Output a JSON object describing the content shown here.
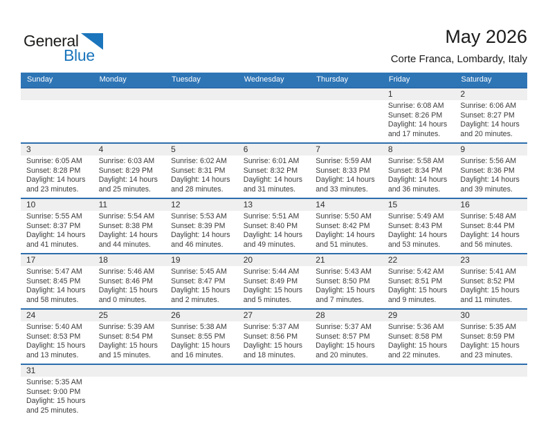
{
  "logo": {
    "line1": "General",
    "line2": "Blue"
  },
  "header": {
    "title": "May 2026",
    "subtitle": "Corte Franca, Lombardy, Italy"
  },
  "weekday_header": [
    "Sunday",
    "Monday",
    "Tuesday",
    "Wednesday",
    "Thursday",
    "Friday",
    "Saturday"
  ],
  "colors": {
    "header-bg": "#2e75b6",
    "line-blue": "#2b6cac",
    "band-bg": "#efefef",
    "brand-blue": "#1b75bc"
  },
  "weeks": [
    [
      null,
      null,
      null,
      null,
      null,
      {
        "day": "1",
        "lines": [
          "Sunrise: 6:08 AM",
          "Sunset: 8:26 PM",
          "Daylight: 14 hours and 17 minutes."
        ]
      },
      {
        "day": "2",
        "lines": [
          "Sunrise: 6:06 AM",
          "Sunset: 8:27 PM",
          "Daylight: 14 hours and 20 minutes."
        ]
      }
    ],
    [
      {
        "day": "3",
        "lines": [
          "Sunrise: 6:05 AM",
          "Sunset: 8:28 PM",
          "Daylight: 14 hours and 23 minutes."
        ]
      },
      {
        "day": "4",
        "lines": [
          "Sunrise: 6:03 AM",
          "Sunset: 8:29 PM",
          "Daylight: 14 hours and 25 minutes."
        ]
      },
      {
        "day": "5",
        "lines": [
          "Sunrise: 6:02 AM",
          "Sunset: 8:31 PM",
          "Daylight: 14 hours and 28 minutes."
        ]
      },
      {
        "day": "6",
        "lines": [
          "Sunrise: 6:01 AM",
          "Sunset: 8:32 PM",
          "Daylight: 14 hours and 31 minutes."
        ]
      },
      {
        "day": "7",
        "lines": [
          "Sunrise: 5:59 AM",
          "Sunset: 8:33 PM",
          "Daylight: 14 hours and 33 minutes."
        ]
      },
      {
        "day": "8",
        "lines": [
          "Sunrise: 5:58 AM",
          "Sunset: 8:34 PM",
          "Daylight: 14 hours and 36 minutes."
        ]
      },
      {
        "day": "9",
        "lines": [
          "Sunrise: 5:56 AM",
          "Sunset: 8:36 PM",
          "Daylight: 14 hours and 39 minutes."
        ]
      }
    ],
    [
      {
        "day": "10",
        "lines": [
          "Sunrise: 5:55 AM",
          "Sunset: 8:37 PM",
          "Daylight: 14 hours and 41 minutes."
        ]
      },
      {
        "day": "11",
        "lines": [
          "Sunrise: 5:54 AM",
          "Sunset: 8:38 PM",
          "Daylight: 14 hours and 44 minutes."
        ]
      },
      {
        "day": "12",
        "lines": [
          "Sunrise: 5:53 AM",
          "Sunset: 8:39 PM",
          "Daylight: 14 hours and 46 minutes."
        ]
      },
      {
        "day": "13",
        "lines": [
          "Sunrise: 5:51 AM",
          "Sunset: 8:40 PM",
          "Daylight: 14 hours and 49 minutes."
        ]
      },
      {
        "day": "14",
        "lines": [
          "Sunrise: 5:50 AM",
          "Sunset: 8:42 PM",
          "Daylight: 14 hours and 51 minutes."
        ]
      },
      {
        "day": "15",
        "lines": [
          "Sunrise: 5:49 AM",
          "Sunset: 8:43 PM",
          "Daylight: 14 hours and 53 minutes."
        ]
      },
      {
        "day": "16",
        "lines": [
          "Sunrise: 5:48 AM",
          "Sunset: 8:44 PM",
          "Daylight: 14 hours and 56 minutes."
        ]
      }
    ],
    [
      {
        "day": "17",
        "lines": [
          "Sunrise: 5:47 AM",
          "Sunset: 8:45 PM",
          "Daylight: 14 hours and 58 minutes."
        ]
      },
      {
        "day": "18",
        "lines": [
          "Sunrise: 5:46 AM",
          "Sunset: 8:46 PM",
          "Daylight: 15 hours and 0 minutes."
        ]
      },
      {
        "day": "19",
        "lines": [
          "Sunrise: 5:45 AM",
          "Sunset: 8:47 PM",
          "Daylight: 15 hours and 2 minutes."
        ]
      },
      {
        "day": "20",
        "lines": [
          "Sunrise: 5:44 AM",
          "Sunset: 8:49 PM",
          "Daylight: 15 hours and 5 minutes."
        ]
      },
      {
        "day": "21",
        "lines": [
          "Sunrise: 5:43 AM",
          "Sunset: 8:50 PM",
          "Daylight: 15 hours and 7 minutes."
        ]
      },
      {
        "day": "22",
        "lines": [
          "Sunrise: 5:42 AM",
          "Sunset: 8:51 PM",
          "Daylight: 15 hours and 9 minutes."
        ]
      },
      {
        "day": "23",
        "lines": [
          "Sunrise: 5:41 AM",
          "Sunset: 8:52 PM",
          "Daylight: 15 hours and 11 minutes."
        ]
      }
    ],
    [
      {
        "day": "24",
        "lines": [
          "Sunrise: 5:40 AM",
          "Sunset: 8:53 PM",
          "Daylight: 15 hours and 13 minutes."
        ]
      },
      {
        "day": "25",
        "lines": [
          "Sunrise: 5:39 AM",
          "Sunset: 8:54 PM",
          "Daylight: 15 hours and 15 minutes."
        ]
      },
      {
        "day": "26",
        "lines": [
          "Sunrise: 5:38 AM",
          "Sunset: 8:55 PM",
          "Daylight: 15 hours and 16 minutes."
        ]
      },
      {
        "day": "27",
        "lines": [
          "Sunrise: 5:37 AM",
          "Sunset: 8:56 PM",
          "Daylight: 15 hours and 18 minutes."
        ]
      },
      {
        "day": "28",
        "lines": [
          "Sunrise: 5:37 AM",
          "Sunset: 8:57 PM",
          "Daylight: 15 hours and 20 minutes."
        ]
      },
      {
        "day": "29",
        "lines": [
          "Sunrise: 5:36 AM",
          "Sunset: 8:58 PM",
          "Daylight: 15 hours and 22 minutes."
        ]
      },
      {
        "day": "30",
        "lines": [
          "Sunrise: 5:35 AM",
          "Sunset: 8:59 PM",
          "Daylight: 15 hours and 23 minutes."
        ]
      }
    ],
    [
      {
        "day": "31",
        "lines": [
          "Sunrise: 5:35 AM",
          "Sunset: 9:00 PM",
          "Daylight: 15 hours and 25 minutes."
        ]
      },
      null,
      null,
      null,
      null,
      null,
      null
    ]
  ]
}
